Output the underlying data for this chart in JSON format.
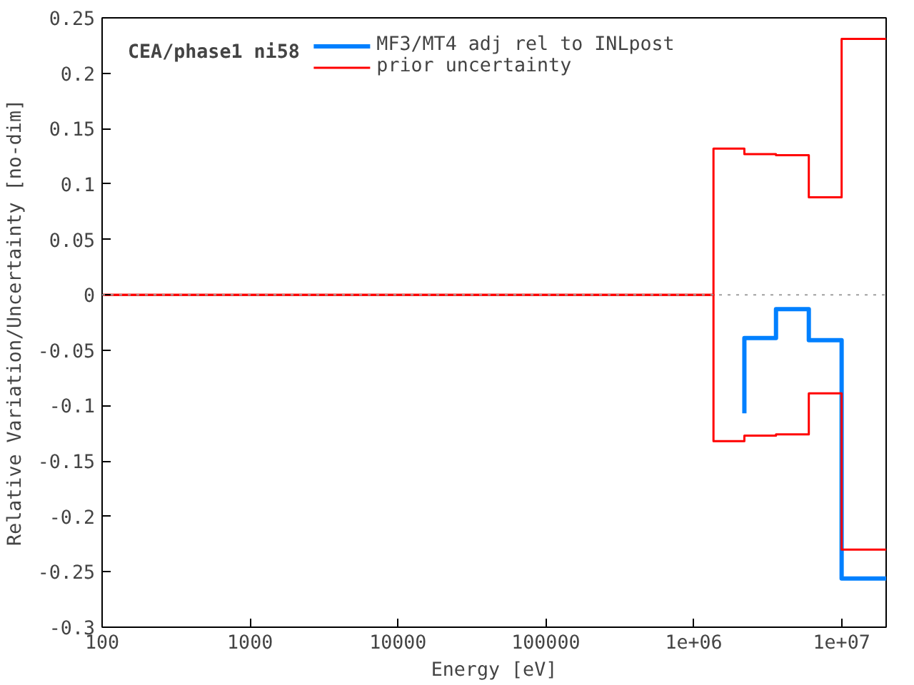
{
  "chart_data": {
    "type": "step",
    "xlabel": "Energy [eV]",
    "ylabel": "Relative Variation/Uncertainty [no-dim]",
    "annotations": [
      "CEA/phase1 ni58"
    ],
    "series": [
      {
        "name": "MF3/MT4 adj rel to INLpost",
        "color": "#0080ff",
        "x": [
          2200000,
          2200000,
          3600000,
          6000000,
          10000000,
          20000000
        ],
        "values": [
          -0.107,
          -0.039,
          -0.013,
          -0.041,
          -0.256,
          -0.256
        ]
      },
      {
        "name": "prior uncertainty",
        "color": "#ff0000",
        "x": [
          100,
          1360000,
          2200000,
          3600000,
          6000000,
          10000000,
          20000000
        ],
        "values": [
          0,
          0.132,
          0.127,
          0.126,
          0.088,
          0.231,
          0.231
        ]
      },
      {
        "color": "#ff0000",
        "x": [
          100,
          1360000,
          2200000,
          3600000,
          6000000,
          10000000,
          20000000
        ],
        "values": [
          0,
          -0.132,
          -0.127,
          -0.126,
          -0.089,
          -0.23,
          -0.23
        ]
      }
    ],
    "ref_lines": [
      {
        "axis": "y",
        "value": 0,
        "color": "#a0a0a0",
        "line_style": "dotted"
      }
    ],
    "log": "x",
    "xlim": [
      100,
      20000000
    ],
    "xticks": [
      100,
      1000,
      10000,
      100000,
      {
        "value": 1000000,
        "label": "1e+06"
      },
      {
        "value": 10000000,
        "label": "1e+07"
      }
    ],
    "ylim": [
      -0.3,
      0.25
    ],
    "yticks": [
      -0.3,
      -0.25,
      -0.2,
      -0.15,
      -0.1,
      -0.05,
      0,
      0.05,
      0.1,
      0.15,
      0.2,
      0.25
    ],
    "grid": false,
    "legend": "top"
  }
}
